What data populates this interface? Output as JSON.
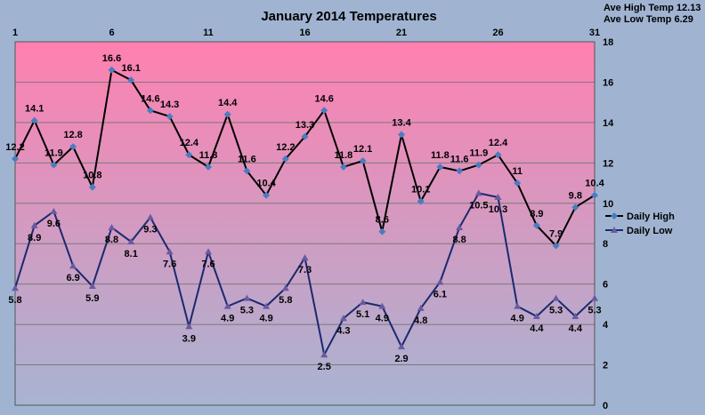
{
  "chart_data": {
    "type": "line",
    "title": "January 2014 Temperatures",
    "stats": {
      "ave_high": "Ave High Temp 12.13",
      "ave_low": "Ave Low Temp 6.29"
    },
    "x": [
      1,
      2,
      3,
      4,
      5,
      6,
      7,
      8,
      9,
      10,
      11,
      12,
      13,
      14,
      15,
      16,
      17,
      18,
      19,
      20,
      21,
      22,
      23,
      24,
      25,
      26,
      27,
      28,
      29,
      30,
      31
    ],
    "x_tick_labels": [
      "1",
      "6",
      "11",
      "16",
      "21",
      "26",
      "31"
    ],
    "x_ticks": [
      1,
      6,
      11,
      16,
      21,
      26,
      31
    ],
    "xlim": [
      1,
      31
    ],
    "ylim": [
      0,
      18
    ],
    "y_ticks": [
      0,
      2,
      4,
      6,
      8,
      10,
      12,
      14,
      16,
      18
    ],
    "grid": "horizontal",
    "legend_position": "right",
    "series": [
      {
        "name": "Daily High",
        "color": "#000000",
        "marker_color": "#4a7cc0",
        "marker": "diamond",
        "values": [
          12.2,
          14.1,
          11.9,
          12.8,
          10.8,
          16.6,
          16.1,
          14.6,
          14.3,
          12.4,
          11.8,
          14.4,
          11.6,
          10.4,
          12.2,
          13.3,
          14.6,
          11.8,
          12.1,
          8.6,
          13.4,
          10.1,
          11.8,
          11.6,
          11.9,
          12.4,
          11.0,
          8.9,
          7.9,
          9.8,
          10.4
        ],
        "labels": [
          "12.2",
          "14.1",
          "11.9",
          "12.8",
          "10.8",
          "16.6",
          "16.1",
          "14.6",
          "14.3",
          "12.4",
          "11.8",
          "14.4",
          "11.6",
          "10.4",
          "12.2",
          "13.3",
          "14.6",
          "11.8",
          "12.1",
          "8.6",
          "13.4",
          "10.1",
          "11.8",
          "11.6",
          "11.9",
          "12.4",
          "11",
          "8.9",
          "7.9",
          "9.8",
          "10.4"
        ]
      },
      {
        "name": "Daily Low",
        "color": "#1a2a6e",
        "marker_color": "#6a5aa0",
        "marker": "triangle",
        "values": [
          5.8,
          8.9,
          9.6,
          6.9,
          5.9,
          8.8,
          8.1,
          9.3,
          7.6,
          3.9,
          7.6,
          4.9,
          5.3,
          4.9,
          5.8,
          7.3,
          2.5,
          4.3,
          5.1,
          4.9,
          2.9,
          4.8,
          6.1,
          8.8,
          10.5,
          10.3,
          4.9,
          4.4,
          5.3,
          4.4,
          5.3
        ],
        "labels": [
          "5.8",
          "8.9",
          "9.6",
          "6.9",
          "5.9",
          "8.8",
          "8.1",
          "9.3",
          "7.6",
          "3.9",
          "7.6",
          "4.9",
          "5.3",
          "4.9",
          "5.8",
          "7.3",
          "2.5",
          "4.3",
          "5.1",
          "4.9",
          "2.9",
          "4.8",
          "6.1",
          "8.8",
          "10.5",
          "10.3",
          "4.9",
          "4.4",
          "5.3",
          "4.4",
          "5.3"
        ]
      }
    ],
    "colors": {
      "background": "#a0b4d2",
      "plot_top": "#ff80b0",
      "plot_bottom": "#a8b4d2",
      "grid": "#7a7a7a"
    }
  }
}
